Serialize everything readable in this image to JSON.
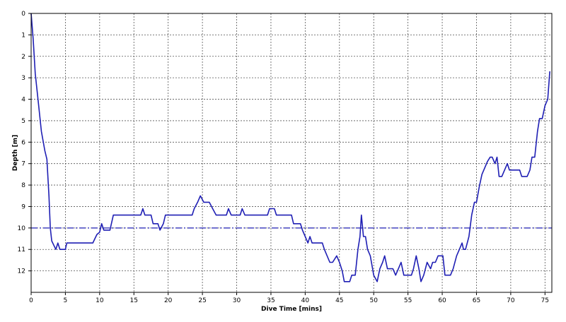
{
  "chart_data": {
    "type": "line",
    "title": "",
    "xlabel": "Dive Time [mins]",
    "ylabel": "Depth [m]",
    "xlim": [
      0,
      76
    ],
    "ylim": [
      0,
      13
    ],
    "y_inverted": true,
    "grid": true,
    "x_ticks": [
      0,
      5,
      10,
      15,
      20,
      25,
      30,
      35,
      40,
      45,
      50,
      55,
      60,
      65,
      70,
      75
    ],
    "y_ticks": [
      0,
      1,
      2,
      3,
      4,
      5,
      6,
      7,
      8,
      9,
      10,
      11,
      12
    ],
    "colors": {
      "series": "#1f1fb4",
      "reference": "#1f1fb4",
      "grid": "#555555",
      "axes": "#000000"
    },
    "reference_lines": [
      {
        "y": 10,
        "style": "dash-dot"
      }
    ],
    "series": [
      {
        "x": [
          0,
          0.3,
          0.6,
          1.0,
          1.5,
          2.0,
          2.3,
          2.6,
          2.8,
          3.0,
          3.3,
          3.6,
          3.9,
          4.2,
          4.5,
          5.0,
          5.2,
          5.5,
          9.0,
          9.3,
          9.6,
          10.0,
          10.3,
          10.6,
          11.0,
          11.5,
          12.0,
          12.3,
          16.0,
          16.3,
          16.6,
          17.5,
          17.8,
          18.5,
          18.8,
          19.3,
          19.6,
          20.0,
          23.5,
          23.8,
          24.3,
          24.7,
          25.2,
          26.0,
          26.5,
          27.0,
          28.5,
          28.8,
          29.2,
          30.5,
          30.8,
          31.2,
          34.5,
          34.8,
          35.5,
          35.8,
          38.0,
          38.3,
          39.3,
          39.6,
          40.0,
          40.4,
          40.7,
          41.0,
          41.5,
          42.5,
          42.8,
          43.6,
          44.0,
          44.6,
          45.0,
          45.4,
          45.7,
          46.5,
          46.8,
          47.3,
          47.7,
          48.0,
          48.2,
          48.5,
          48.8,
          49.1,
          49.5,
          50.0,
          50.5,
          50.9,
          51.3,
          51.6,
          52.0,
          52.4,
          52.8,
          53.2,
          53.6,
          54.0,
          54.4,
          55.5,
          55.8,
          56.2,
          56.6,
          56.9,
          57.3,
          57.8,
          58.3,
          58.6,
          59.0,
          59.4,
          60.1,
          60.4,
          61.2,
          61.6,
          62.1,
          62.5,
          62.9,
          63.1,
          63.4,
          63.9,
          64.3,
          64.7,
          65.0,
          65.4,
          65.8,
          66.2,
          66.6,
          67.0,
          67.3,
          67.7,
          68.0,
          68.3,
          68.7,
          69.5,
          69.8,
          70.1,
          71.3,
          71.6,
          72.4,
          72.8,
          73.1,
          73.5,
          73.9,
          74.2,
          74.6,
          75.0,
          75.4,
          75.7
        ],
        "y": [
          0,
          1.2,
          2.8,
          4.0,
          5.5,
          6.4,
          6.8,
          8.5,
          10.0,
          10.6,
          10.8,
          11.0,
          10.7,
          11.0,
          11.0,
          11.0,
          10.7,
          10.7,
          10.7,
          10.5,
          10.3,
          10.2,
          9.8,
          10.1,
          10.1,
          10.1,
          9.4,
          9.4,
          9.4,
          9.1,
          9.4,
          9.4,
          9.8,
          9.8,
          10.1,
          9.8,
          9.4,
          9.4,
          9.4,
          9.1,
          8.8,
          8.5,
          8.8,
          8.8,
          9.1,
          9.4,
          9.4,
          9.1,
          9.4,
          9.4,
          9.1,
          9.4,
          9.4,
          9.1,
          9.1,
          9.4,
          9.4,
          9.8,
          9.8,
          10.1,
          10.4,
          10.7,
          10.4,
          10.7,
          10.7,
          10.7,
          11.0,
          11.6,
          11.6,
          11.3,
          11.6,
          12.0,
          12.5,
          12.5,
          12.2,
          12.2,
          11.0,
          10.4,
          9.4,
          10.4,
          10.4,
          11.0,
          11.3,
          12.2,
          12.5,
          11.9,
          11.6,
          11.3,
          11.9,
          11.9,
          11.9,
          12.2,
          11.9,
          11.6,
          12.2,
          12.2,
          11.9,
          11.3,
          11.9,
          12.5,
          12.2,
          11.6,
          11.9,
          11.6,
          11.6,
          11.3,
          11.3,
          12.2,
          12.2,
          11.9,
          11.3,
          11.0,
          10.7,
          11.0,
          11.0,
          10.4,
          9.4,
          8.8,
          8.8,
          8.1,
          7.5,
          7.2,
          6.9,
          6.7,
          6.7,
          7.0,
          6.7,
          7.6,
          7.6,
          7.0,
          7.3,
          7.3,
          7.3,
          7.6,
          7.6,
          7.3,
          6.7,
          6.7,
          5.5,
          4.9,
          4.9,
          4.3,
          4.0,
          2.7
        ]
      }
    ]
  }
}
